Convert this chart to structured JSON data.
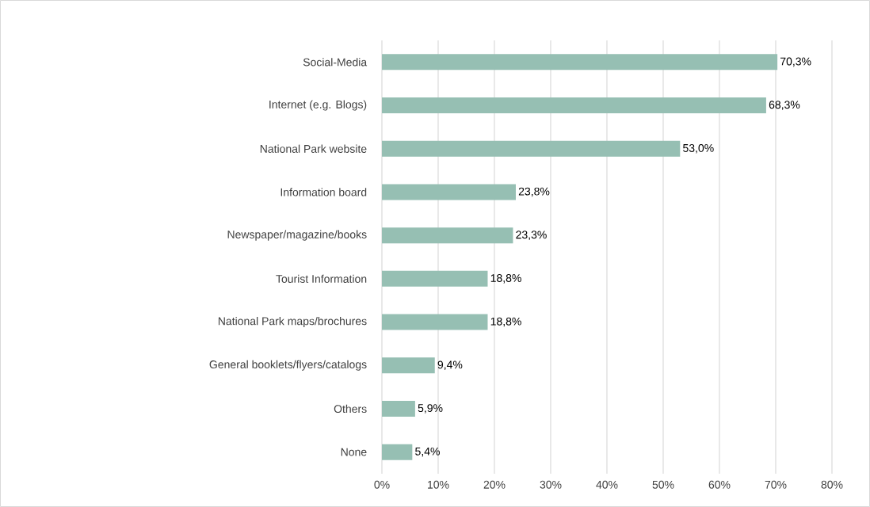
{
  "chart_data": {
    "type": "bar",
    "orientation": "horizontal",
    "categories": [
      "Social-Media",
      "Internet (e.g. Blogs)",
      "National Park website",
      "Information board",
      "Newspaper/magazine/books",
      "Tourist Information",
      "National Park maps/brochures",
      "General booklets/flyers/catalogs",
      "Others",
      "None"
    ],
    "values": [
      70.3,
      68.3,
      53.0,
      23.8,
      23.3,
      18.8,
      18.8,
      9.4,
      5.9,
      5.4
    ],
    "value_labels": [
      "70,3%",
      "68,3%",
      "53,0%",
      "23,8%",
      "23,3%",
      "18,8%",
      "18,8%",
      "9,4%",
      "5,9%",
      "5,4%"
    ],
    "color": "#96bfb3",
    "xlim": [
      0,
      80
    ],
    "xticks": [
      {
        "value": 0,
        "label": "0%"
      },
      {
        "value": 10,
        "label": "10%"
      },
      {
        "value": 20,
        "label": "20%"
      },
      {
        "value": 30,
        "label": "30%"
      },
      {
        "value": 40,
        "label": "40%"
      },
      {
        "value": 50,
        "label": "50%"
      },
      {
        "value": 60,
        "label": "60%"
      },
      {
        "value": 70,
        "label": "70%"
      },
      {
        "value": 80,
        "label": "80%"
      }
    ],
    "grid": "x"
  }
}
